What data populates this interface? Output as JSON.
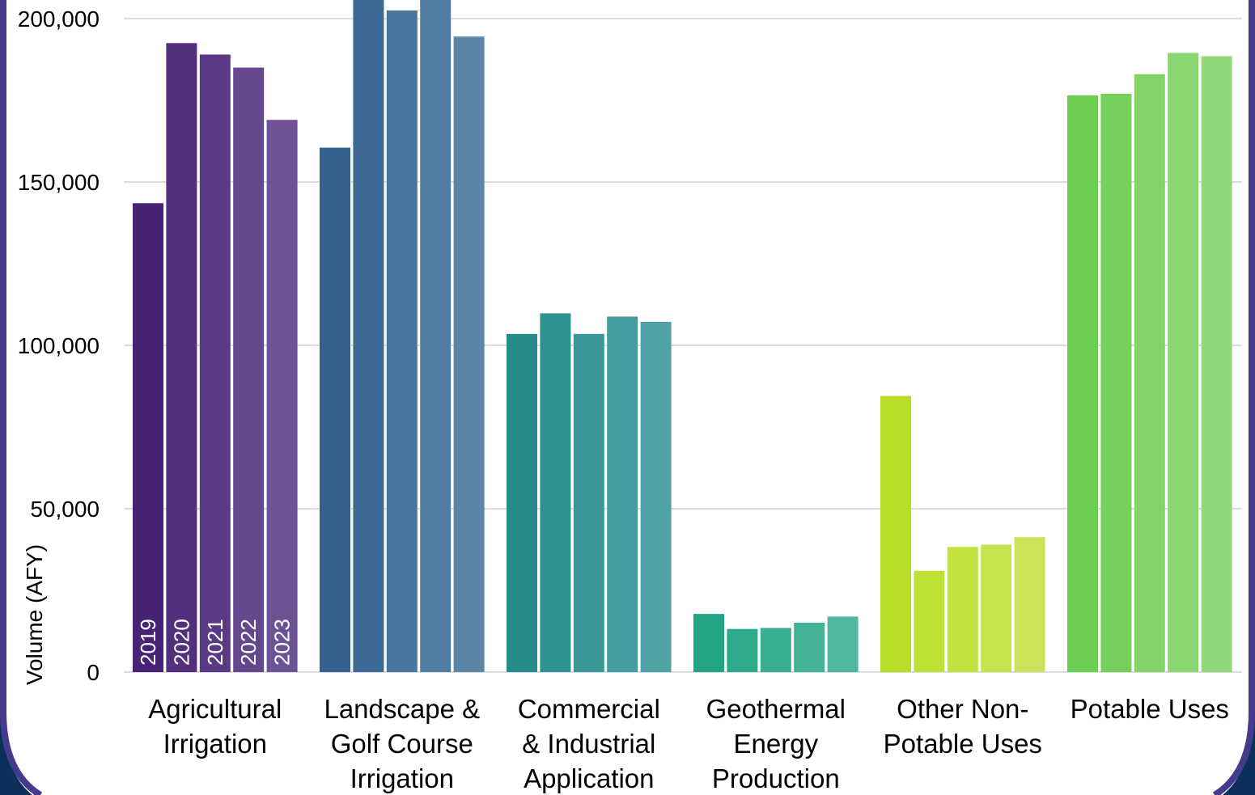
{
  "colors": {
    "frame": "#463a8c",
    "frame_shadow": "#0b2f5a",
    "grid": "#d0d0d0"
  },
  "chart_data": {
    "type": "bar",
    "title": "",
    "xlabel": "",
    "ylabel": "Volume (AFY)",
    "ylim": [
      0,
      205000
    ],
    "yticks": [
      0,
      50000,
      100000,
      150000,
      200000
    ],
    "ytick_labels": [
      "0",
      "50,000",
      "100,000",
      "150,000",
      "200,000"
    ],
    "grid": true,
    "legend": "none",
    "year_labels_in_first_group": true,
    "categories": [
      "Agricultural Irrigation",
      "Landscape & Golf Course Irrigation",
      "Commercial & Industrial Application",
      "Geothermal Energy Production",
      "Other Non-Potable Uses",
      "Potable Uses"
    ],
    "category_label_lines": [
      [
        "Agricultural",
        "Irrigation"
      ],
      [
        "Landscape &",
        "Golf Course",
        "Irrigation"
      ],
      [
        "Commercial",
        "& Industrial",
        "Application"
      ],
      [
        "Geothermal",
        "Energy",
        "Production"
      ],
      [
        "Other Non-",
        "Potable Uses"
      ],
      [
        "Potable Uses"
      ]
    ],
    "series": [
      {
        "name": "2019",
        "values": [
          143500,
          160500,
          103500,
          17800,
          84500,
          176500
        ]
      },
      {
        "name": "2020",
        "values": [
          192500,
          212000,
          109800,
          13200,
          31000,
          177000
        ]
      },
      {
        "name": "2021",
        "values": [
          189000,
          202500,
          103500,
          13500,
          38300,
          183000
        ]
      },
      {
        "name": "2022",
        "values": [
          185000,
          210000,
          108800,
          15100,
          39000,
          189500
        ]
      },
      {
        "name": "2023",
        "values": [
          169000,
          194500,
          107200,
          17000,
          41300,
          188500
        ]
      }
    ],
    "bar_colors": [
      [
        "#482375",
        "#52307c",
        "#5b3a85",
        "#65478d",
        "#6d5294"
      ],
      [
        "#34618d",
        "#3d6a94",
        "#47759b",
        "#517da2",
        "#5b86a8"
      ],
      [
        "#248c8c",
        "#2d9292",
        "#3a9898",
        "#439d9e",
        "#4fa3a5"
      ],
      [
        "#22a485",
        "#2caa8b",
        "#38af93",
        "#43b398",
        "#4fb7a0"
      ],
      [
        "#b8de2a",
        "#bde134",
        "#c2e240",
        "#c7e34c",
        "#cbe45a"
      ],
      [
        "#6ecd53",
        "#78d05c",
        "#84d366",
        "#8ad670",
        "#91d87a"
      ]
    ]
  }
}
